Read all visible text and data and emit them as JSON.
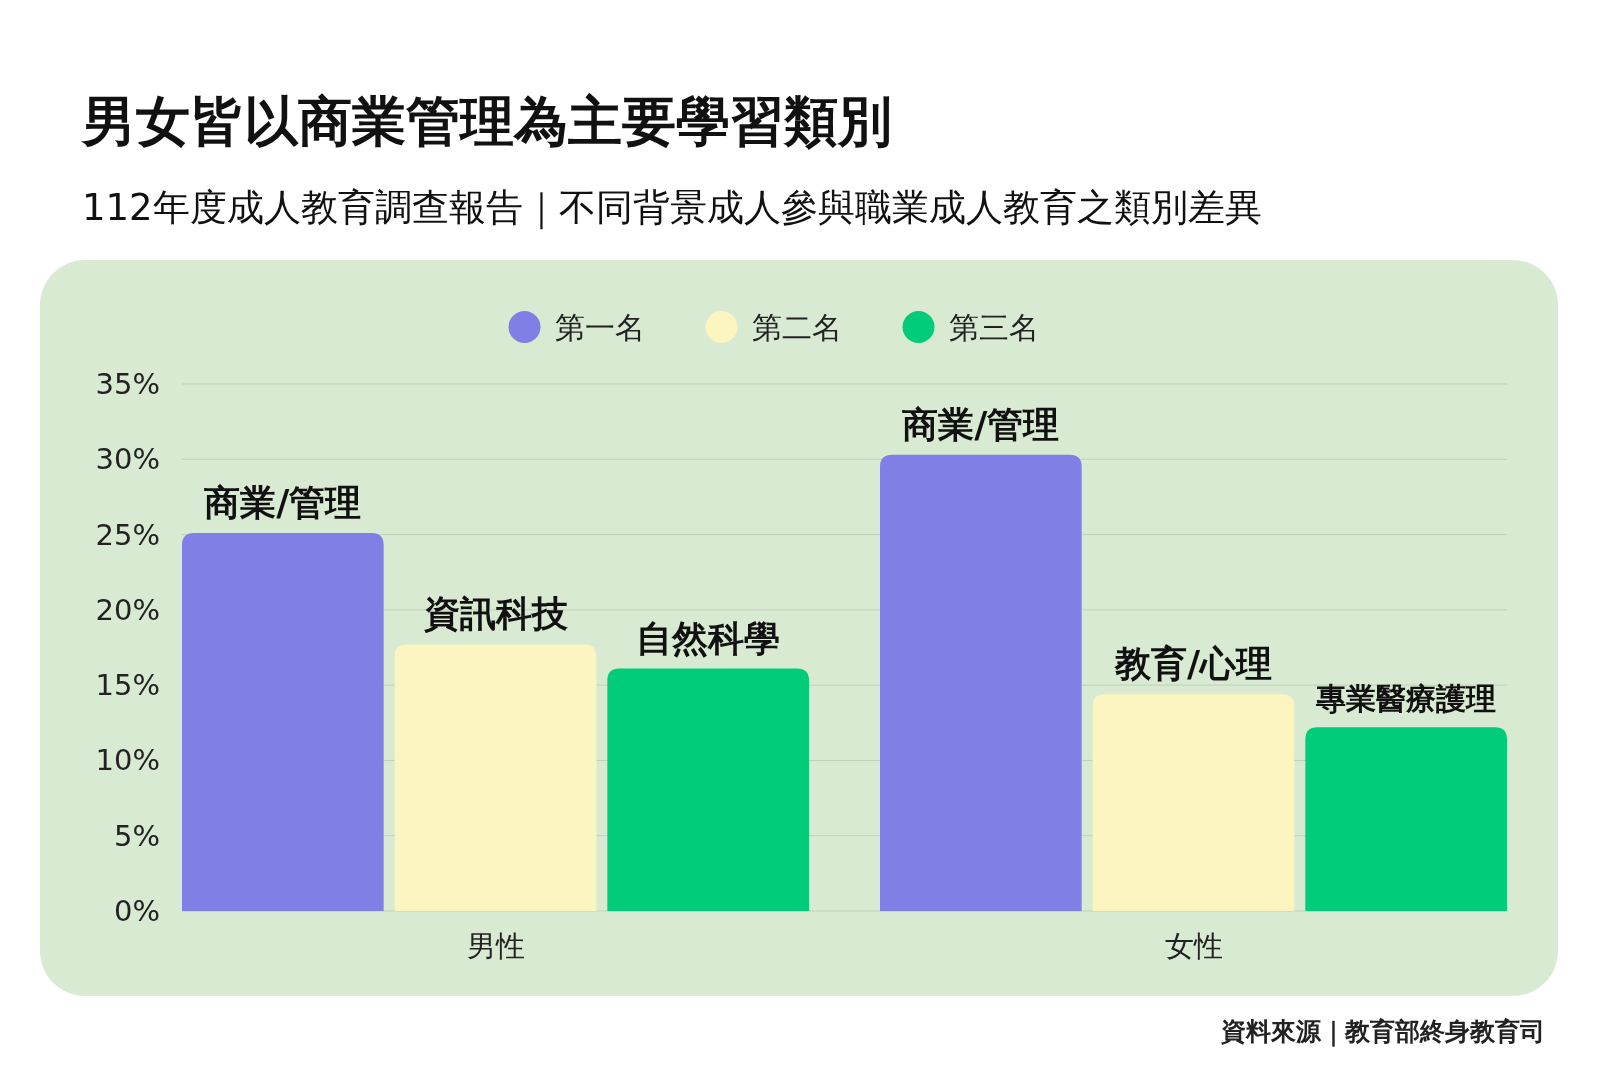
{
  "chart_data": {
    "type": "bar",
    "title": "男女皆以商業管理為主要學習類別",
    "subtitle": "112年度成人教育調查報告｜不同背景成人參與職業成人教育之類別差異",
    "categories": [
      "男性",
      "女性"
    ],
    "series": [
      {
        "name": "第一名",
        "color": "#7f7fe6",
        "values": [
          25.1,
          30.3
        ],
        "value_labels": [
          "商業/管理",
          "商業/管理"
        ]
      },
      {
        "name": "第二名",
        "color": "#fdf5c0",
        "values": [
          17.7,
          14.4
        ],
        "value_labels": [
          "資訊科技",
          "教育/心理"
        ]
      },
      {
        "name": "第三名",
        "color": "#00cc7a",
        "values": [
          16.1,
          12.2
        ],
        "value_labels": [
          "自然科學",
          "專業醫療護理"
        ]
      }
    ],
    "ylim": [
      0,
      35
    ],
    "yticks": [
      {
        "value": 0,
        "label": "0%"
      },
      {
        "value": 5,
        "label": "5%"
      },
      {
        "value": 10,
        "label": "10%"
      },
      {
        "value": 15,
        "label": "15%"
      },
      {
        "value": 20,
        "label": "20%"
      },
      {
        "value": 25,
        "label": "25%"
      },
      {
        "value": 30,
        "label": "30%"
      },
      {
        "value": 35,
        "label": "35%"
      }
    ],
    "grid": "y",
    "legend": "top",
    "annotations": [
      "資料來源｜教育部終身教育司"
    ]
  }
}
